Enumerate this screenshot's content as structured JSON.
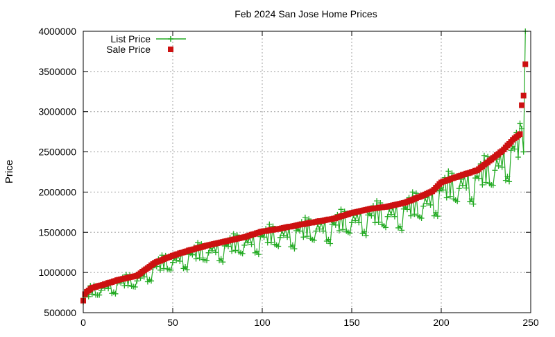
{
  "chart_data": {
    "type": "line",
    "title": "Feb 2024 San Jose Home Prices",
    "xlabel": "",
    "ylabel": "Price",
    "xlim": [
      0,
      250
    ],
    "ylim": [
      500000,
      4000000
    ],
    "x_ticks": [
      0,
      50,
      100,
      150,
      200,
      250
    ],
    "y_ticks": [
      500000,
      1000000,
      1500000,
      2000000,
      2500000,
      3000000,
      3500000,
      4000000
    ],
    "grid": true,
    "legend_position": "top-left",
    "n_points": 248,
    "sale_anchors": [
      [
        0,
        650000
      ],
      [
        1,
        730000
      ],
      [
        2,
        760000
      ],
      [
        5,
        810000
      ],
      [
        10,
        840000
      ],
      [
        20,
        910000
      ],
      [
        30,
        960000
      ],
      [
        40,
        1120000
      ],
      [
        50,
        1210000
      ],
      [
        60,
        1280000
      ],
      [
        70,
        1340000
      ],
      [
        80,
        1390000
      ],
      [
        90,
        1440000
      ],
      [
        100,
        1510000
      ],
      [
        110,
        1545000
      ],
      [
        120,
        1590000
      ],
      [
        130,
        1630000
      ],
      [
        140,
        1670000
      ],
      [
        150,
        1740000
      ],
      [
        160,
        1790000
      ],
      [
        170,
        1820000
      ],
      [
        180,
        1870000
      ],
      [
        190,
        1960000
      ],
      [
        195,
        2010000
      ],
      [
        200,
        2120000
      ],
      [
        210,
        2200000
      ],
      [
        220,
        2270000
      ],
      [
        230,
        2440000
      ],
      [
        235,
        2530000
      ],
      [
        240,
        2650000
      ],
      [
        244,
        2720000
      ],
      [
        245,
        3080000
      ],
      [
        246,
        3200000
      ],
      [
        247,
        3590000
      ]
    ],
    "list_ratio_pattern": [
      0.97,
      0.9,
      1.03,
      0.86,
      0.94,
      1.0,
      0.82,
      0.95,
      1.05,
      0.88,
      0.93,
      0.99,
      0.84,
      0.96,
      1.02,
      0.9,
      0.87,
      0.98,
      0.92,
      0.85
    ],
    "list_overrides": [
      [
        245,
        2790000
      ],
      [
        246,
        2500000
      ],
      [
        247,
        4000000
      ]
    ],
    "series": [
      {
        "name": "List Price",
        "style": "lines+plus",
        "color": "#22aa22"
      },
      {
        "name": "Sale Price",
        "style": "squares",
        "color": "#cc1111"
      }
    ]
  }
}
